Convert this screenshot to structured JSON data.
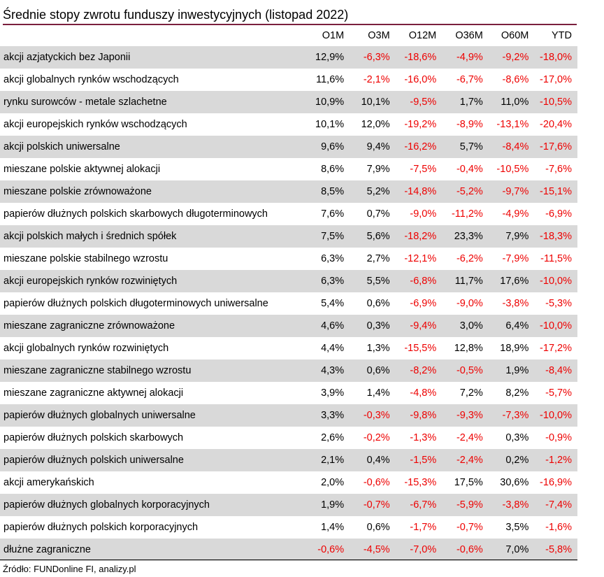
{
  "title": "Średnie stopy zwrotu funduszy inwestycyjnych (listopad 2022)",
  "columns": [
    "O1M",
    "O3M",
    "O12M",
    "O36M",
    "O60M",
    "YTD"
  ],
  "rows": [
    {
      "name": "akcji azjatyckich bez Japonii",
      "values": [
        "12,9%",
        "-6,3%",
        "-18,6%",
        "-4,9%",
        "-9,2%",
        "-18,0%"
      ]
    },
    {
      "name": "akcji globalnych rynków wschodzących",
      "values": [
        "11,6%",
        "-2,1%",
        "-16,0%",
        "-6,7%",
        "-8,6%",
        "-17,0%"
      ]
    },
    {
      "name": "rynku surowców - metale szlachetne",
      "values": [
        "10,9%",
        "10,1%",
        "-9,5%",
        "1,7%",
        "11,0%",
        "-10,5%"
      ]
    },
    {
      "name": "akcji europejskich rynków wschodzących",
      "values": [
        "10,1%",
        "12,0%",
        "-19,2%",
        "-8,9%",
        "-13,1%",
        "-20,4%"
      ]
    },
    {
      "name": "akcji polskich uniwersalne",
      "values": [
        "9,6%",
        "9,4%",
        "-16,2%",
        "5,7%",
        "-8,4%",
        "-17,6%"
      ]
    },
    {
      "name": "mieszane polskie aktywnej alokacji",
      "values": [
        "8,6%",
        "7,9%",
        "-7,5%",
        "-0,4%",
        "-10,5%",
        "-7,6%"
      ]
    },
    {
      "name": "mieszane polskie zrównoważone",
      "values": [
        "8,5%",
        "5,2%",
        "-14,8%",
        "-5,2%",
        "-9,7%",
        "-15,1%"
      ]
    },
    {
      "name": "papierów dłużnych polskich skarbowych długoterminowych",
      "values": [
        "7,6%",
        "0,7%",
        "-9,0%",
        "-11,2%",
        "-4,9%",
        "-6,9%"
      ]
    },
    {
      "name": "akcji polskich małych i średnich spółek",
      "values": [
        "7,5%",
        "5,6%",
        "-18,2%",
        "23,3%",
        "7,9%",
        "-18,3%"
      ]
    },
    {
      "name": "mieszane polskie stabilnego wzrostu",
      "values": [
        "6,3%",
        "2,7%",
        "-12,1%",
        "-6,2%",
        "-7,9%",
        "-11,5%"
      ]
    },
    {
      "name": "akcji europejskich rynków rozwiniętych",
      "values": [
        "6,3%",
        "5,5%",
        "-6,8%",
        "11,7%",
        "17,6%",
        "-10,0%"
      ]
    },
    {
      "name": "papierów dłużnych polskich długoterminowych uniwersalne",
      "values": [
        "5,4%",
        "0,6%",
        "-6,9%",
        "-9,0%",
        "-3,8%",
        "-5,3%"
      ]
    },
    {
      "name": "mieszane zagraniczne zrównoważone",
      "values": [
        "4,6%",
        "0,3%",
        "-9,4%",
        "3,0%",
        "6,4%",
        "-10,0%"
      ]
    },
    {
      "name": "akcji globalnych rynków rozwiniętych",
      "values": [
        "4,4%",
        "1,3%",
        "-15,5%",
        "12,8%",
        "18,9%",
        "-17,2%"
      ]
    },
    {
      "name": "mieszane zagraniczne stabilnego wzrostu",
      "values": [
        "4,3%",
        "0,6%",
        "-8,2%",
        "-0,5%",
        "1,9%",
        "-8,4%"
      ]
    },
    {
      "name": "mieszane zagraniczne aktywnej alokacji",
      "values": [
        "3,9%",
        "1,4%",
        "-4,8%",
        "7,2%",
        "8,2%",
        "-5,7%"
      ]
    },
    {
      "name": "papierów dłużnych globalnych uniwersalne",
      "values": [
        "3,3%",
        "-0,3%",
        "-9,8%",
        "-9,3%",
        "-7,3%",
        "-10,0%"
      ]
    },
    {
      "name": "papierów dłużnych polskich skarbowych",
      "values": [
        "2,6%",
        "-0,2%",
        "-1,3%",
        "-2,4%",
        "0,3%",
        "-0,9%"
      ]
    },
    {
      "name": "papierów dłużnych polskich uniwersalne",
      "values": [
        "2,1%",
        "0,4%",
        "-1,5%",
        "-2,4%",
        "0,2%",
        "-1,2%"
      ]
    },
    {
      "name": "akcji amerykańskich",
      "values": [
        "2,0%",
        "-0,6%",
        "-15,3%",
        "17,5%",
        "30,6%",
        "-16,9%"
      ]
    },
    {
      "name": "papierów dłużnych globalnych korporacyjnych",
      "values": [
        "1,9%",
        "-0,7%",
        "-6,7%",
        "-5,9%",
        "-3,8%",
        "-7,4%"
      ]
    },
    {
      "name": "papierów dłużnych polskich korporacyjnych",
      "values": [
        "1,4%",
        "0,6%",
        "-1,7%",
        "-0,7%",
        "3,5%",
        "-1,6%"
      ]
    },
    {
      "name": "dłużne zagraniczne",
      "values": [
        "-0,6%",
        "-4,5%",
        "-7,0%",
        "-0,6%",
        "7,0%",
        "-5,8%"
      ]
    }
  ],
  "source": "Źródło: FUNDonline FI, analizy.pl",
  "colors": {
    "negative": "#ee0000",
    "shaded_row": "#d9d9d9",
    "title_rule": "#7a1f3d"
  }
}
